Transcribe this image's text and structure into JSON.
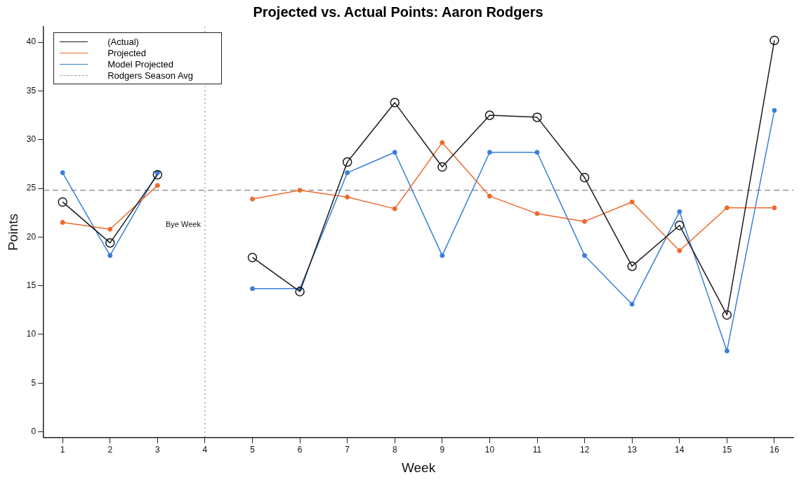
{
  "chart_data": {
    "type": "line",
    "title": "Projected vs. Actual Points: Aaron Rodgers",
    "xlabel": "Week",
    "ylabel": "Points",
    "x": [
      1,
      2,
      3,
      4,
      5,
      6,
      7,
      8,
      9,
      10,
      11,
      12,
      13,
      14,
      15,
      16
    ],
    "xlim": [
      0.6,
      16.4
    ],
    "xticks": [
      1,
      2,
      3,
      4,
      5,
      6,
      7,
      8,
      9,
      10,
      11,
      12,
      13,
      14,
      15,
      16
    ],
    "ylim": [
      -0.6,
      41.6
    ],
    "yticks": [
      0,
      5,
      10,
      15,
      20,
      25,
      30,
      35,
      40
    ],
    "series": [
      {
        "name": "(Actual)",
        "color": "#1a1a1a",
        "marker": "circle",
        "values": [
          23.6,
          19.4,
          26.4,
          null,
          17.9,
          14.4,
          27.7,
          33.8,
          27.2,
          32.5,
          32.3,
          26.1,
          17.0,
          21.2,
          12.0,
          40.2
        ]
      },
      {
        "name": "Projected",
        "color": "#ee6a2c",
        "values": [
          21.5,
          20.8,
          25.3,
          null,
          23.9,
          24.8,
          24.1,
          22.9,
          29.7,
          24.2,
          22.4,
          21.6,
          23.6,
          18.6,
          23.0,
          23.0
        ]
      },
      {
        "name": "Model Projected",
        "color": "#3a7fd9",
        "values": [
          26.6,
          18.1,
          26.6,
          null,
          14.7,
          14.7,
          26.6,
          28.7,
          18.1,
          28.7,
          28.7,
          18.1,
          13.1,
          22.6,
          8.3,
          33.0
        ]
      }
    ],
    "ref_lines": [
      {
        "axis": "y",
        "value": 24.8,
        "label": "Rodgers Season Avg",
        "color": "#999999",
        "line_style": "dashed"
      },
      {
        "axis": "x",
        "value": 4,
        "label": "Bye Week",
        "color": "#aaaaaa",
        "line_style": "dotted"
      }
    ],
    "legend": "top left",
    "grid": false,
    "marker": "circle",
    "line_style": "solid"
  }
}
